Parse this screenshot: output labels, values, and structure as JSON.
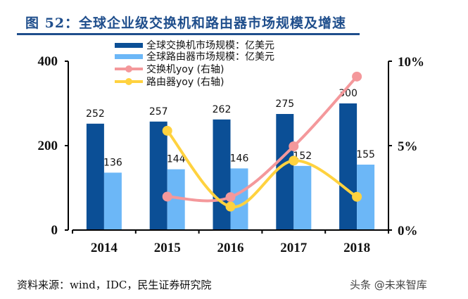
{
  "title": "图 52：全球企业级交换机和路由器市场规模及增速",
  "source": "资料来源：wind，IDC，民生证券研究院",
  "watermark": "头条 @未来智库",
  "chart_data": {
    "type": "bar+line",
    "categories": [
      "2014",
      "2015",
      "2016",
      "2017",
      "2018"
    ],
    "series": [
      {
        "name": "全球交换机市场规模：亿美元",
        "type": "bar",
        "axis": "left",
        "color": "#0B4F96",
        "values": [
          252,
          257,
          262,
          275,
          300
        ]
      },
      {
        "name": "全球路由器市场规模：亿美元",
        "type": "bar",
        "axis": "left",
        "color": "#6CB7F7",
        "values": [
          136,
          144,
          146,
          152,
          155
        ]
      },
      {
        "name": "交换机yoy (右轴)",
        "type": "line",
        "axis": "right",
        "color": "#F4989B",
        "values": [
          null,
          1.98,
          1.95,
          4.96,
          9.09
        ]
      },
      {
        "name": "路由器yoy (右轴)",
        "type": "line",
        "axis": "right",
        "color": "#FFD23F",
        "values": [
          null,
          5.88,
          1.39,
          4.11,
          1.97
        ]
      }
    ],
    "left_axis": {
      "range": [
        0,
        400
      ],
      "ticks": [
        "0",
        "200",
        "400"
      ]
    },
    "right_axis": {
      "range": [
        0,
        10
      ],
      "ticks": [
        "0%",
        "5%",
        "10%"
      ]
    },
    "legend": "top",
    "grid": false
  }
}
